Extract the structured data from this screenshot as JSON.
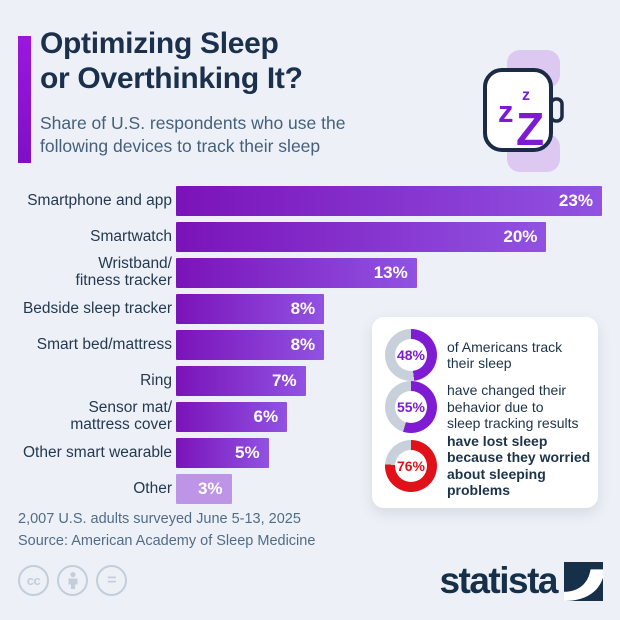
{
  "chart_data": [
    {
      "type": "bar",
      "orientation": "horizontal",
      "title": "Optimizing Sleep\nor Overthinking It?",
      "subtitle": "Share of U.S. respondents who use the\nfollowing devices to track their sleep",
      "unit": "%",
      "categories": [
        "Smartphone and app",
        "Smartwatch",
        "Wristband/\nfitness tracker",
        "Bedside sleep tracker",
        "Smart bed/mattress",
        "Ring",
        "Sensor mat/\nmattress cover",
        "Other smart wearable",
        "Other"
      ],
      "values": [
        23,
        20,
        13,
        8,
        8,
        7,
        6,
        5,
        3
      ],
      "value_labels": [
        "23%",
        "20%",
        "13%",
        "8%",
        "8%",
        "7%",
        "6%",
        "5%",
        "3%"
      ],
      "xlim": [
        0,
        23
      ],
      "grid": false,
      "legend": "none",
      "bar_gradient": [
        "#7a13b9",
        "#9152e2"
      ],
      "muted_bar": {
        "index": 8,
        "color": "#be94e6"
      }
    },
    {
      "type": "pie",
      "subtype": "donut-set",
      "track_color": "#c8d1db",
      "items": [
        {
          "value": 48,
          "label": "48%",
          "text": "of Americans track\ntheir sleep",
          "color": "#7e1bd3",
          "emphasis": false
        },
        {
          "value": 55,
          "label": "55%",
          "text": "have changed their\nbehavior due to\nsleep tracking results",
          "color": "#7e1bd3",
          "emphasis": false
        },
        {
          "value": 76,
          "label": "76%",
          "text": "have lost sleep\nbecause they worried\nabout sleeping problems",
          "color": "#e1111a",
          "emphasis": true
        }
      ]
    }
  ],
  "header": {
    "watch_icon": "smartwatch-sleep-zzz-icon",
    "watch_zs": {
      "small": "z",
      "medium": "z",
      "large": "Z"
    }
  },
  "colors": {
    "background": "#edf1f7",
    "title": "#1b304d",
    "subtitle": "#44607d",
    "accent": "#8a13d3",
    "navy": "#16304a",
    "watch_band": "#dcc8f1",
    "watch_z": "#7c1bd1"
  },
  "footer": {
    "note": "2,007 U.S. adults surveyed June 5-13, 2025",
    "source": "Source: American Academy of Sleep Medicine",
    "brand": "statista",
    "license": {
      "cc": "cc",
      "nd": "="
    },
    "license_icons": [
      "creative-commons-icon",
      "attribution-person-icon",
      "no-derivatives-icon"
    ]
  }
}
